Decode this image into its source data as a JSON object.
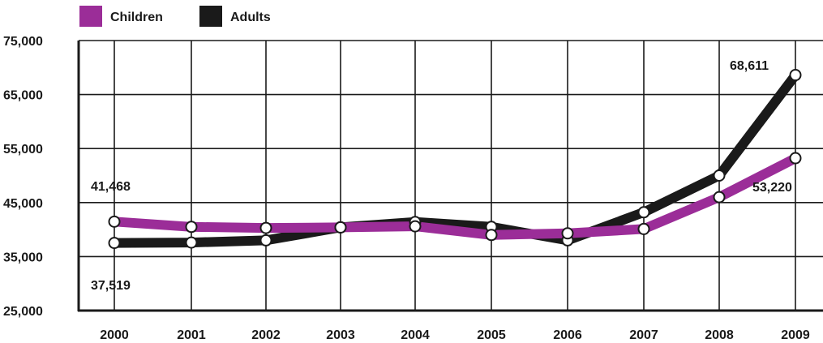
{
  "chart_data": {
    "type": "line",
    "title": "",
    "xlabel": "",
    "ylabel": "",
    "categories": [
      "2000",
      "2001",
      "2002",
      "2003",
      "2004",
      "2005",
      "2006",
      "2007",
      "2008",
      "2009"
    ],
    "series": [
      {
        "name": "Children",
        "color": "#9b2d98",
        "values": [
          41468,
          40500,
          40300,
          40400,
          40600,
          39000,
          39300,
          40100,
          46000,
          53220
        ]
      },
      {
        "name": "Adults",
        "color": "#1a1a1a",
        "values": [
          37519,
          37600,
          38000,
          40400,
          41400,
          40500,
          38000,
          43200,
          50000,
          68611
        ]
      }
    ],
    "yticks": [
      "75,000",
      "65,000",
      "55,000",
      "45,000",
      "35,000",
      "25,000"
    ],
    "ylim": [
      25000,
      75000
    ],
    "grid": true,
    "legend_position": "top-left",
    "annotations": [
      {
        "text": "41,468",
        "series": "Children",
        "category": "2000"
      },
      {
        "text": "37,519",
        "series": "Adults",
        "category": "2000"
      },
      {
        "text": "68,611",
        "series": "Adults",
        "category": "2009"
      },
      {
        "text": "53,220",
        "series": "Children",
        "category": "2009"
      }
    ]
  }
}
